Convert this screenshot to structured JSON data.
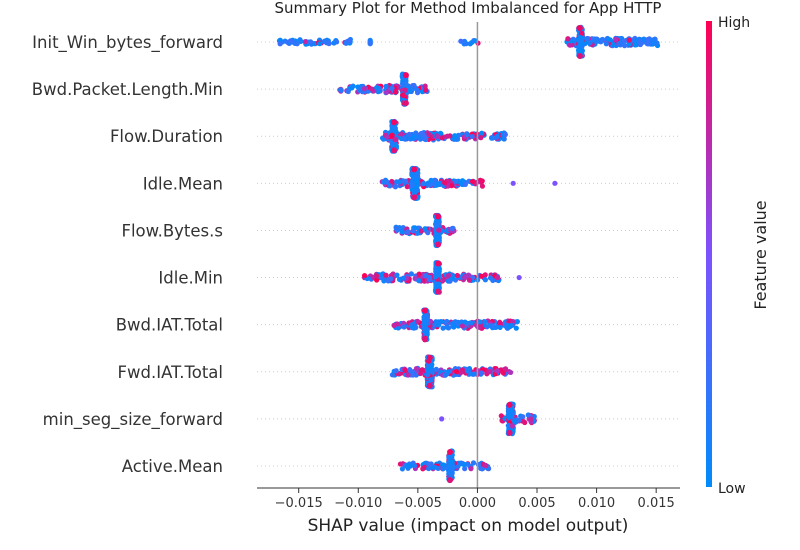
{
  "chart_data": {
    "type": "scatter",
    "title": "Summary Plot for Method Imbalanced for App HTTP",
    "xlabel": "SHAP value (impact on model output)",
    "xlim": [
      -0.0185,
      0.017
    ],
    "xticks": [
      -0.015,
      -0.01,
      -0.005,
      0.0,
      0.005,
      0.01,
      0.015
    ],
    "xtick_labels": [
      "−0.015",
      "−0.010",
      "−0.005",
      "0.000",
      "0.005",
      "0.010",
      "0.015"
    ],
    "colorbar": {
      "label": "Feature value",
      "high": "High",
      "low": "Low",
      "low_color": "#008bfb",
      "high_color": "#ff0052"
    },
    "grid": false,
    "features": [
      {
        "name": "Init_Win_bytes_forward",
        "range": [
          -0.0172,
          0.0152
        ],
        "dense": [
          0.0085,
          0.0088
        ],
        "core": 0.0086,
        "peak": 0.0086,
        "high_frac": 0.12,
        "clusters": [
          [
            -0.0172,
            -0.0105,
            0.35
          ],
          [
            -0.0112,
            -0.0105,
            0.5
          ],
          [
            -0.009,
            -0.009,
            0.1
          ],
          [
            -0.0015,
            0.0002,
            0.3
          ],
          [
            0.0075,
            0.0152,
            0.9
          ]
        ],
        "outliers": []
      },
      {
        "name": "Bwd.Packet.Length.Min",
        "range": [
          -0.0118,
          -0.0042
        ],
        "dense": [
          -0.0063,
          -0.006
        ],
        "core": -0.006,
        "peak": -0.006,
        "high_frac": 0.45,
        "clusters": [
          [
            -0.0118,
            -0.009,
            0.6
          ],
          [
            -0.009,
            -0.0042,
            0.9
          ]
        ],
        "outliers": []
      },
      {
        "name": "Flow.Duration",
        "range": [
          -0.008,
          0.0025
        ],
        "dense": [
          -0.0072,
          -0.0068
        ],
        "core": -0.007,
        "peak": -0.007,
        "high_frac": 0.4,
        "clusters": [
          [
            -0.008,
            -0.0035,
            1.0
          ],
          [
            -0.0035,
            0.0025,
            0.7
          ]
        ],
        "outliers": []
      },
      {
        "name": "Idle.Mean",
        "range": [
          -0.008,
          0.0005
        ],
        "dense": [
          -0.0055,
          -0.005
        ],
        "core": -0.0053,
        "peak": -0.0053,
        "high_frac": 0.4,
        "clusters": [
          [
            -0.008,
            -0.003,
            0.8
          ],
          [
            -0.003,
            0.0005,
            0.7
          ]
        ],
        "outliers": [
          0.003,
          0.0065
        ]
      },
      {
        "name": "Flow.Bytes.s",
        "range": [
          -0.007,
          -0.0018
        ],
        "dense": [
          -0.0035,
          -0.0032
        ],
        "core": -0.0033,
        "peak": -0.0033,
        "high_frac": 0.45,
        "clusters": [
          [
            -0.007,
            -0.0018,
            0.7
          ]
        ],
        "outliers": []
      },
      {
        "name": "Idle.Min",
        "range": [
          -0.0095,
          0.002
        ],
        "dense": [
          -0.0035,
          -0.0032
        ],
        "core": -0.0033,
        "peak": -0.0033,
        "high_frac": 0.4,
        "clusters": [
          [
            -0.0095,
            -0.0085,
            0.5
          ],
          [
            -0.0085,
            -0.001,
            0.9
          ],
          [
            -0.001,
            0.002,
            0.6
          ]
        ],
        "outliers": [
          0.0035
        ]
      },
      {
        "name": "Bwd.IAT.Total",
        "range": [
          -0.007,
          0.0035
        ],
        "dense": [
          -0.0045,
          -0.0042
        ],
        "core": -0.0044,
        "peak": -0.0044,
        "high_frac": 0.35,
        "clusters": [
          [
            -0.007,
            -0.002,
            0.8
          ],
          [
            -0.002,
            0.0035,
            0.9
          ]
        ],
        "outliers": []
      },
      {
        "name": "Fwd.IAT.Total",
        "range": [
          -0.0072,
          0.0028
        ],
        "dense": [
          -0.0042,
          -0.0038
        ],
        "core": -0.004,
        "peak": -0.004,
        "high_frac": 0.5,
        "clusters": [
          [
            -0.0072,
            -0.002,
            0.8
          ],
          [
            -0.002,
            0.0028,
            0.7
          ]
        ],
        "outliers": []
      },
      {
        "name": "min_seg_size_forward",
        "range": [
          0.002,
          0.0048
        ],
        "dense": [
          0.0026,
          0.003
        ],
        "core": 0.0027,
        "peak": 0.0027,
        "high_frac": 0.6,
        "clusters": [
          [
            0.002,
            0.0048,
            1.0
          ]
        ],
        "outliers": [
          -0.003
        ]
      },
      {
        "name": "Active.Mean",
        "range": [
          -0.0065,
          0.001
        ],
        "dense": [
          -0.0024,
          -0.0021
        ],
        "core": -0.0023,
        "peak": -0.0023,
        "high_frac": 0.35,
        "clusters": [
          [
            -0.0065,
            -0.003,
            0.6
          ],
          [
            -0.003,
            0.001,
            0.7
          ]
        ],
        "outliers": []
      }
    ]
  }
}
